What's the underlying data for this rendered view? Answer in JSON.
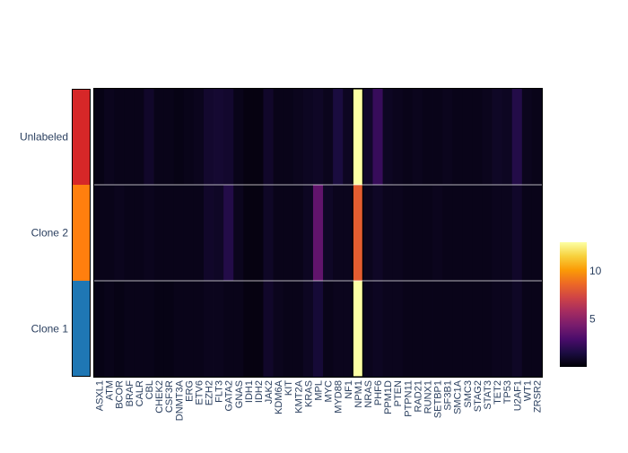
{
  "chart_data": {
    "type": "heatmap",
    "title": "",
    "xlabel": "",
    "ylabel": "",
    "clone_colors": [
      "#d62728",
      "#ff7f0e",
      "#1f77b4"
    ],
    "rows": [
      "Unlabeled",
      "Clone 2",
      "Clone 1"
    ],
    "columns": [
      "ASXL1",
      "ATM",
      "BCOR",
      "BRAF",
      "CALR",
      "CBL",
      "CHEK2",
      "CSF3R",
      "DNMT3A",
      "ERG",
      "ETV6",
      "EZH2",
      "FLT3",
      "GATA2",
      "GNAS",
      "IDH1",
      "IDH2",
      "JAK2",
      "KDM6A",
      "KIT",
      "KMT2A",
      "KRAS",
      "MPL",
      "MYC",
      "MYD88",
      "NF1",
      "NPM1",
      "NRAS",
      "PHF6",
      "PPM1D",
      "PTEN",
      "PTPN11",
      "RAD21",
      "RUNX1",
      "SETBP1",
      "SF3B1",
      "SMC1A",
      "SMC3",
      "STAG2",
      "STAT3",
      "TET2",
      "TP53",
      "U2AF1",
      "WT1",
      "ZRSR2"
    ],
    "values": [
      [
        0.4,
        0.6,
        0.5,
        0.5,
        0.5,
        0.9,
        0.5,
        0.5,
        0.4,
        0.5,
        0.6,
        1.0,
        1.1,
        1.0,
        0.5,
        0.3,
        0.3,
        0.9,
        0.5,
        0.5,
        0.6,
        0.7,
        0.8,
        0.6,
        1.4,
        0.7,
        13.0,
        0.9,
        2.3,
        0.7,
        0.6,
        0.5,
        0.6,
        0.5,
        0.5,
        0.6,
        0.5,
        0.5,
        0.5,
        0.6,
        0.8,
        0.7,
        1.7,
        0.6,
        0.5
      ],
      [
        0.5,
        0.5,
        0.6,
        0.5,
        0.5,
        0.6,
        0.5,
        0.5,
        0.5,
        0.5,
        0.5,
        0.9,
        0.8,
        1.7,
        0.6,
        0.3,
        0.3,
        0.8,
        0.5,
        0.5,
        0.5,
        0.7,
        3.6,
        0.8,
        0.6,
        0.6,
        8.2,
        0.6,
        0.8,
        0.6,
        0.6,
        0.5,
        0.5,
        0.5,
        0.6,
        0.5,
        0.5,
        0.5,
        0.5,
        0.5,
        0.6,
        0.6,
        0.9,
        0.5,
        0.5
      ],
      [
        0.4,
        0.5,
        0.4,
        0.5,
        0.5,
        0.5,
        0.4,
        0.4,
        0.5,
        0.5,
        0.5,
        0.6,
        0.6,
        0.5,
        0.5,
        0.3,
        0.3,
        0.9,
        0.6,
        0.5,
        0.5,
        0.7,
        1.2,
        0.5,
        0.6,
        0.6,
        13.0,
        0.6,
        0.7,
        0.6,
        0.6,
        0.5,
        0.5,
        0.5,
        0.5,
        0.5,
        0.5,
        0.5,
        0.5,
        0.5,
        0.6,
        0.6,
        0.8,
        0.5,
        0.5
      ]
    ],
    "zlim": [
      0,
      13
    ],
    "colorbar": {
      "ticks": [
        5,
        10
      ]
    },
    "colorscale": [
      "#000004",
      "#1b0c41",
      "#4a0c6b",
      "#781c6d",
      "#a52c60",
      "#cf4446",
      "#ed6925",
      "#fb9b06",
      "#f7d13d",
      "#fcffa4"
    ],
    "grid": false,
    "legend": "colorbar-right"
  }
}
